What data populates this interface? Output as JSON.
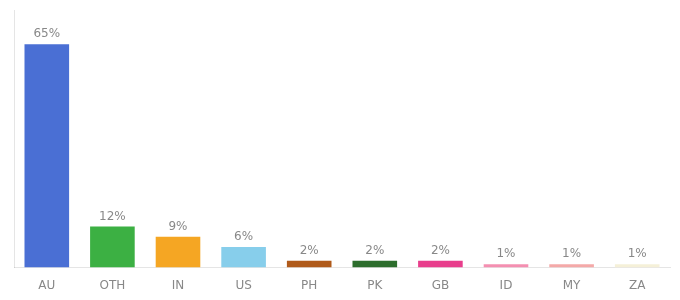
{
  "chart_data": {
    "type": "bar",
    "categories": [
      "AU",
      "OTH",
      "IN",
      "US",
      "PH",
      "PK",
      "GB",
      "ID",
      "MY",
      "ZA"
    ],
    "values": [
      65,
      12,
      9,
      6,
      2,
      2,
      2,
      1,
      1,
      1
    ],
    "value_labels": [
      "65%",
      "12%",
      "9%",
      "6%",
      "2%",
      "2%",
      "2%",
      "1%",
      "1%",
      "1%"
    ],
    "colors": [
      "#4a6fd4",
      "#3cb043",
      "#f5a623",
      "#87ceeb",
      "#b05a1a",
      "#2d6e2d",
      "#e83e8c",
      "#f48fb1",
      "#f4a9a8",
      "#f5f0d8"
    ],
    "ylim": [
      0,
      75
    ],
    "data_labels": true,
    "grid": false,
    "tick_labels": "x"
  }
}
